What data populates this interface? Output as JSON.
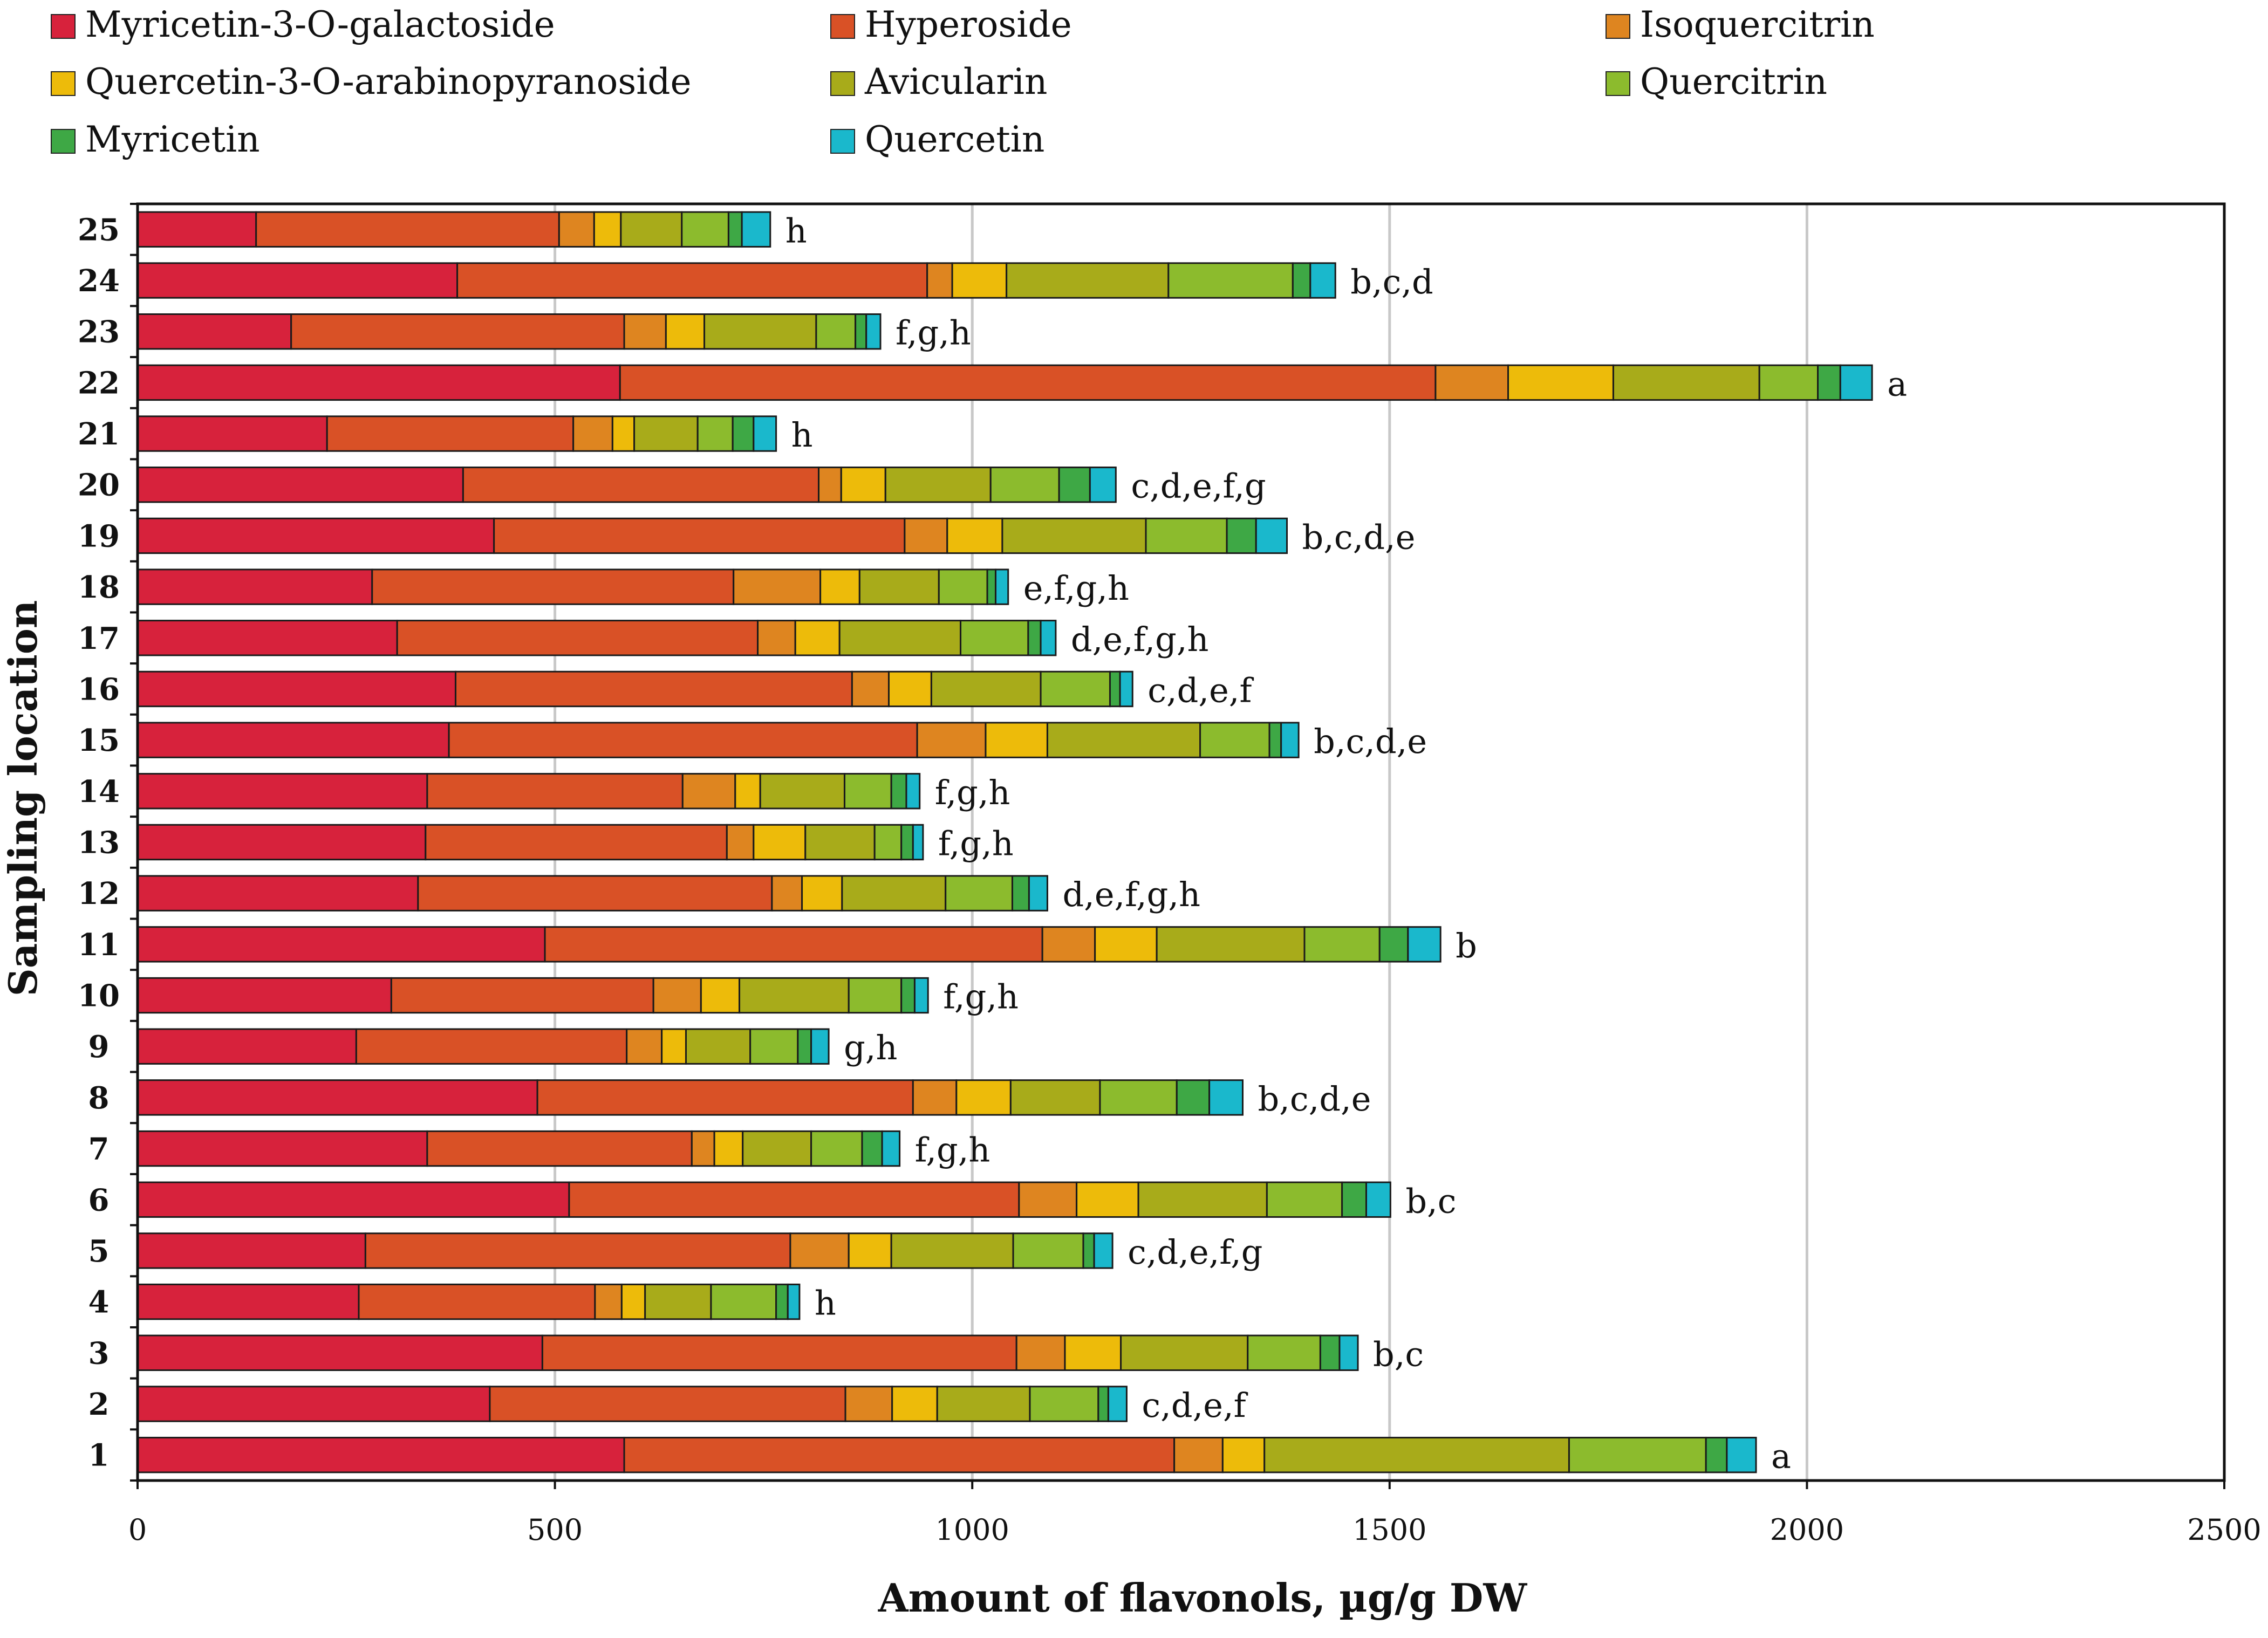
{
  "chart_data": {
    "type": "bar",
    "orientation": "horizontal",
    "stacked": true,
    "title": "",
    "xlabel": "Amount of flavonols, µg/g DW",
    "ylabel": "Sampling location",
    "xlim": [
      0,
      2500
    ],
    "x_ticks": [
      0,
      500,
      1000,
      1500,
      2000,
      2500
    ],
    "x_tick_labels": [
      "0",
      "500",
      "1000",
      "1500",
      "2000",
      "2500"
    ],
    "grid": "vertical",
    "legend_position": "top",
    "categories": [
      "1",
      "2",
      "3",
      "4",
      "5",
      "6",
      "7",
      "8",
      "9",
      "10",
      "11",
      "12",
      "13",
      "14",
      "15",
      "16",
      "17",
      "18",
      "19",
      "20",
      "21",
      "22",
      "23",
      "24",
      "25"
    ],
    "series": [
      {
        "name": "Myricetin-3-O-galactoside",
        "color": "#D7223C",
        "values": [
          583,
          422,
          485,
          265,
          273,
          517,
          347,
          479,
          262,
          304,
          488,
          336,
          345,
          347,
          373,
          381,
          311,
          281,
          427,
          390,
          227,
          578,
          184,
          383,
          142
        ]
      },
      {
        "name": "Hyperoside",
        "color": "#D95126",
        "values": [
          659,
          426,
          568,
          283,
          509,
          539,
          317,
          450,
          324,
          314,
          596,
          424,
          361,
          306,
          561,
          475,
          432,
          433,
          492,
          426,
          295,
          977,
          399,
          563,
          363
        ]
      },
      {
        "name": "Isoquercitrin",
        "color": "#DE8520",
        "values": [
          58,
          56,
          58,
          32,
          70,
          69,
          27,
          52,
          42,
          57,
          63,
          36,
          32,
          63,
          82,
          44,
          45,
          104,
          51,
          27,
          47,
          87,
          50,
          30,
          42
        ]
      },
      {
        "name": "Quercetin-3-O-arabinopyranoside",
        "color": "#EDBB0A",
        "values": [
          50,
          54,
          67,
          28,
          51,
          74,
          34,
          65,
          29,
          46,
          74,
          48,
          62,
          30,
          74,
          51,
          53,
          47,
          66,
          53,
          26,
          126,
          46,
          65,
          32
        ]
      },
      {
        "name": "Avicularin",
        "color": "#A8AB1A",
        "values": [
          365,
          111,
          152,
          79,
          146,
          154,
          82,
          107,
          77,
          131,
          177,
          124,
          83,
          101,
          183,
          131,
          145,
          95,
          172,
          126,
          76,
          175,
          134,
          194,
          73
        ]
      },
      {
        "name": "Quercitrin",
        "color": "#8CBB2D",
        "values": [
          164,
          82,
          87,
          78,
          84,
          90,
          61,
          92,
          57,
          63,
          90,
          80,
          32,
          56,
          83,
          83,
          81,
          58,
          97,
          82,
          42,
          70,
          47,
          149,
          56
        ]
      },
      {
        "name": "Myricetin",
        "color": "#3EA845",
        "values": [
          25,
          12,
          23,
          14,
          13,
          29,
          24,
          39,
          16,
          16,
          34,
          20,
          14,
          18,
          14,
          12,
          15,
          10,
          35,
          37,
          25,
          27,
          13,
          21,
          16
        ]
      },
      {
        "name": "Quercetin",
        "color": "#1AB8CC",
        "values": [
          35,
          22,
          22,
          14,
          22,
          29,
          21,
          40,
          21,
          16,
          39,
          22,
          12,
          16,
          21,
          15,
          18,
          15,
          37,
          31,
          27,
          38,
          17,
          30,
          34
        ]
      }
    ],
    "significance_labels": [
      "a",
      "c,d,e,f",
      "b,c",
      "h",
      "c,d,e,f,g",
      "b,c",
      "f,g,h",
      "b,c,d,e",
      "g,h",
      "f,g,h",
      "b",
      "d,e,f,g,h",
      "f,g,h",
      "f,g,h",
      "b,c,d,e",
      "c,d,e,f",
      "d,e,f,g,h",
      "e,f,g,h",
      "b,c,d,e",
      "c,d,e,f,g",
      "h",
      "a",
      "f,g,h",
      "b,c,d",
      "h"
    ]
  }
}
